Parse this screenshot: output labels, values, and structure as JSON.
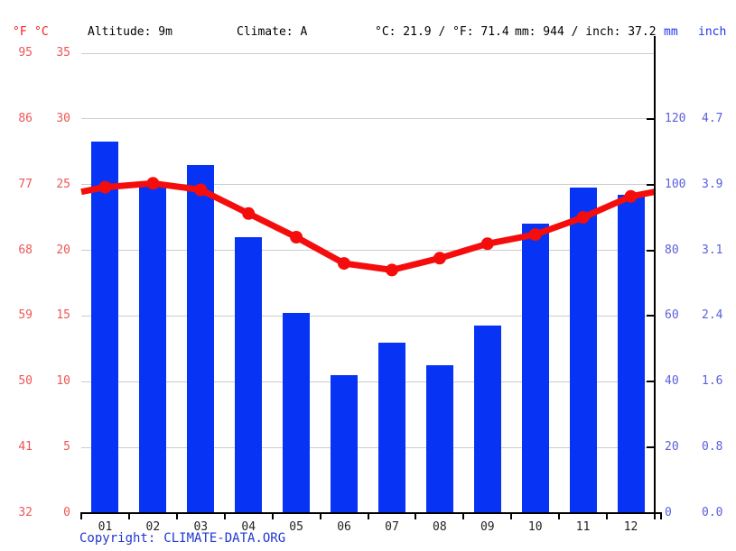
{
  "header": {
    "unit_f": "°F",
    "unit_c": "°C",
    "altitude": "Altitude: 9m",
    "climate": "Climate: A",
    "temperature_summary": "°C: 21.9 / °F: 71.4",
    "precipitation_summary": "mm: 944 / inch: 37.2",
    "unit_mm": "mm",
    "unit_inch": "inch"
  },
  "axes": {
    "fahrenheit_ticks": [
      "95",
      "86",
      "77",
      "68",
      "59",
      "50",
      "41",
      "32"
    ],
    "celsius_ticks": [
      "35",
      "30",
      "25",
      "20",
      "15",
      "10",
      "5",
      "0"
    ],
    "mm_ticks": [
      "120",
      "100",
      "80",
      "60",
      "40",
      "20",
      "0"
    ],
    "inch_ticks": [
      "4.7",
      "3.9",
      "3.1",
      "2.4",
      "1.6",
      "0.8",
      "0.0"
    ]
  },
  "chart_data": {
    "type": "bar",
    "subtype": "climate combo: precipitation bars + temperature line",
    "categories": [
      "01",
      "02",
      "03",
      "04",
      "05",
      "06",
      "07",
      "08",
      "09",
      "10",
      "11",
      "12"
    ],
    "series": [
      {
        "name": "Precipitation (mm)",
        "type": "bar",
        "color": "#0733f5",
        "values": [
          113,
          100,
          106,
          84,
          61,
          42,
          52,
          45,
          57,
          88,
          99,
          97
        ]
      },
      {
        "name": "Temperature (°C)",
        "type": "line",
        "color": "#f50d0d",
        "values": [
          24.8,
          25.1,
          24.6,
          22.8,
          21.0,
          19.0,
          18.5,
          19.4,
          20.5,
          21.2,
          22.5,
          24.1
        ]
      }
    ],
    "temp_axis_c": {
      "min": 0,
      "max": 35,
      "tick_step": 5
    },
    "precip_axis_mm": {
      "min": 0,
      "max": 140,
      "tick_step": 20,
      "labeled_max": 120
    },
    "annual_mean_temp_c": 21.9,
    "annual_precip_mm": 944,
    "grid": true,
    "legend_position": "none"
  },
  "colors": {
    "bar_blue": "#0733f5",
    "line_red": "#f50d0d",
    "left_axis_red": "#f05555",
    "right_axis_blue": "#5a5fdd",
    "header_red": "#fb1b1b",
    "header_blue": "#2336ee",
    "copyright_blue": "#2038d0",
    "gridline_gray": "#cccccc",
    "axis_black": "#000000"
  },
  "footer": {
    "copyright_label": "Copyright:",
    "copyright_link": "CLIMATE-DATA.ORG"
  }
}
